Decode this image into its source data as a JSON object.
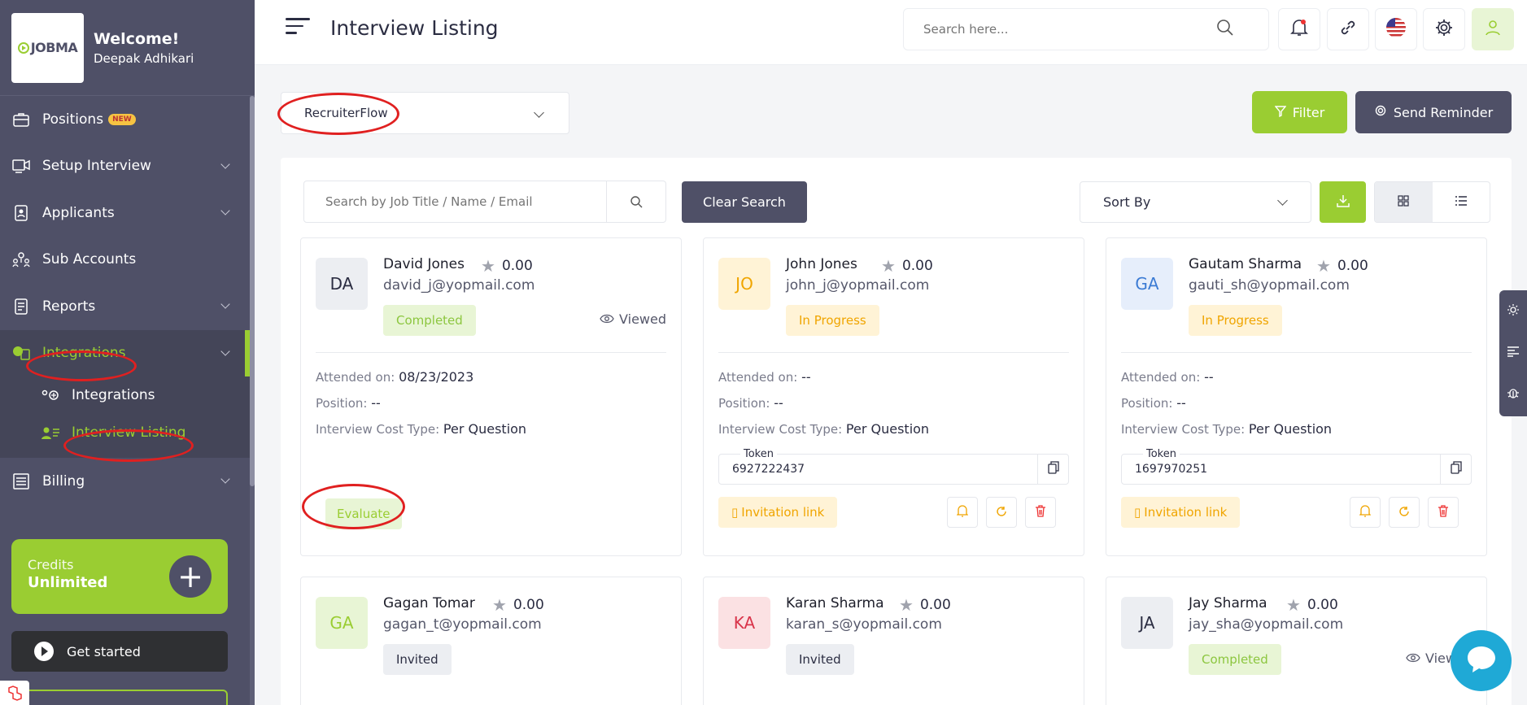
{
  "brand": {
    "logo_text": "JOBMA",
    "welcome": "Welcome!",
    "user_name": "Deepak Adhikari"
  },
  "sidebar": {
    "items": [
      {
        "label": "Positions",
        "badge": "NEW",
        "icon": "briefcase-icon"
      },
      {
        "label": "Setup Interview",
        "icon": "video-icon"
      },
      {
        "label": "Applicants",
        "icon": "id-card-icon"
      },
      {
        "label": "Sub Accounts",
        "icon": "users-icon"
      },
      {
        "label": "Reports",
        "icon": "report-icon"
      },
      {
        "label": "Integrations",
        "icon": "integrations-icon"
      },
      {
        "label": "Billing",
        "icon": "billing-icon"
      }
    ],
    "sub_items": [
      {
        "label": "Integrations",
        "icon": "plug-icon"
      },
      {
        "label": "Interview Listing",
        "icon": "user-list-icon"
      }
    ],
    "credits_label": "Credits",
    "credits_value": "Unlimited",
    "get_started": "Get started"
  },
  "header": {
    "title": "Interview Listing",
    "search_placeholder": "Search here..."
  },
  "toolbar": {
    "integration_select": "RecruiterFlow",
    "filter": "Filter",
    "send_reminder": "Send Reminder"
  },
  "panel": {
    "search_placeholder": "Search by Job Title / Name / Email",
    "clear_search": "Clear Search",
    "sort_by": "Sort By"
  },
  "labels": {
    "attended_on": "Attended on:",
    "position": "Position:",
    "cost_type": "Interview Cost Type:",
    "token": "Token",
    "invitation_link": "Invitation link",
    "evaluate": "Evaluate",
    "viewed": "Viewed"
  },
  "cards": [
    {
      "initials": "DA",
      "name": "David Jones",
      "rating": "0.00",
      "email": "david_j@yopmail.com",
      "status": "Completed",
      "viewed": "Viewed",
      "attended": "08/23/2023",
      "position": "--",
      "cost_type": "Per Question"
    },
    {
      "initials": "JO",
      "name": "John Jones",
      "rating": "0.00",
      "email": "john_j@yopmail.com",
      "status": "In Progress",
      "attended": "--",
      "position": "--",
      "cost_type": "Per Question",
      "token": "6927222437"
    },
    {
      "initials": "GA",
      "name": "Gautam Sharma",
      "rating": "0.00",
      "email": "gauti_sh@yopmail.com",
      "status": "In Progress",
      "attended": "--",
      "position": "--",
      "cost_type": "Per Question",
      "token": "1697970251"
    },
    {
      "initials": "GA",
      "name": "Gagan Tomar",
      "rating": "0.00",
      "email": "gagan_t@yopmail.com",
      "status": "Invited"
    },
    {
      "initials": "KA",
      "name": "Karan Sharma",
      "rating": "0.00",
      "email": "karan_s@yopmail.com",
      "status": "Invited"
    },
    {
      "initials": "JA",
      "name": "Jay Sharma",
      "rating": "0.00",
      "email": "jay_sha@yopmail.com",
      "status": "Completed",
      "viewed": "View"
    }
  ],
  "colors": {
    "sidebar": "#4f5067",
    "accent": "#9acd32",
    "annotation": "#e02020"
  }
}
